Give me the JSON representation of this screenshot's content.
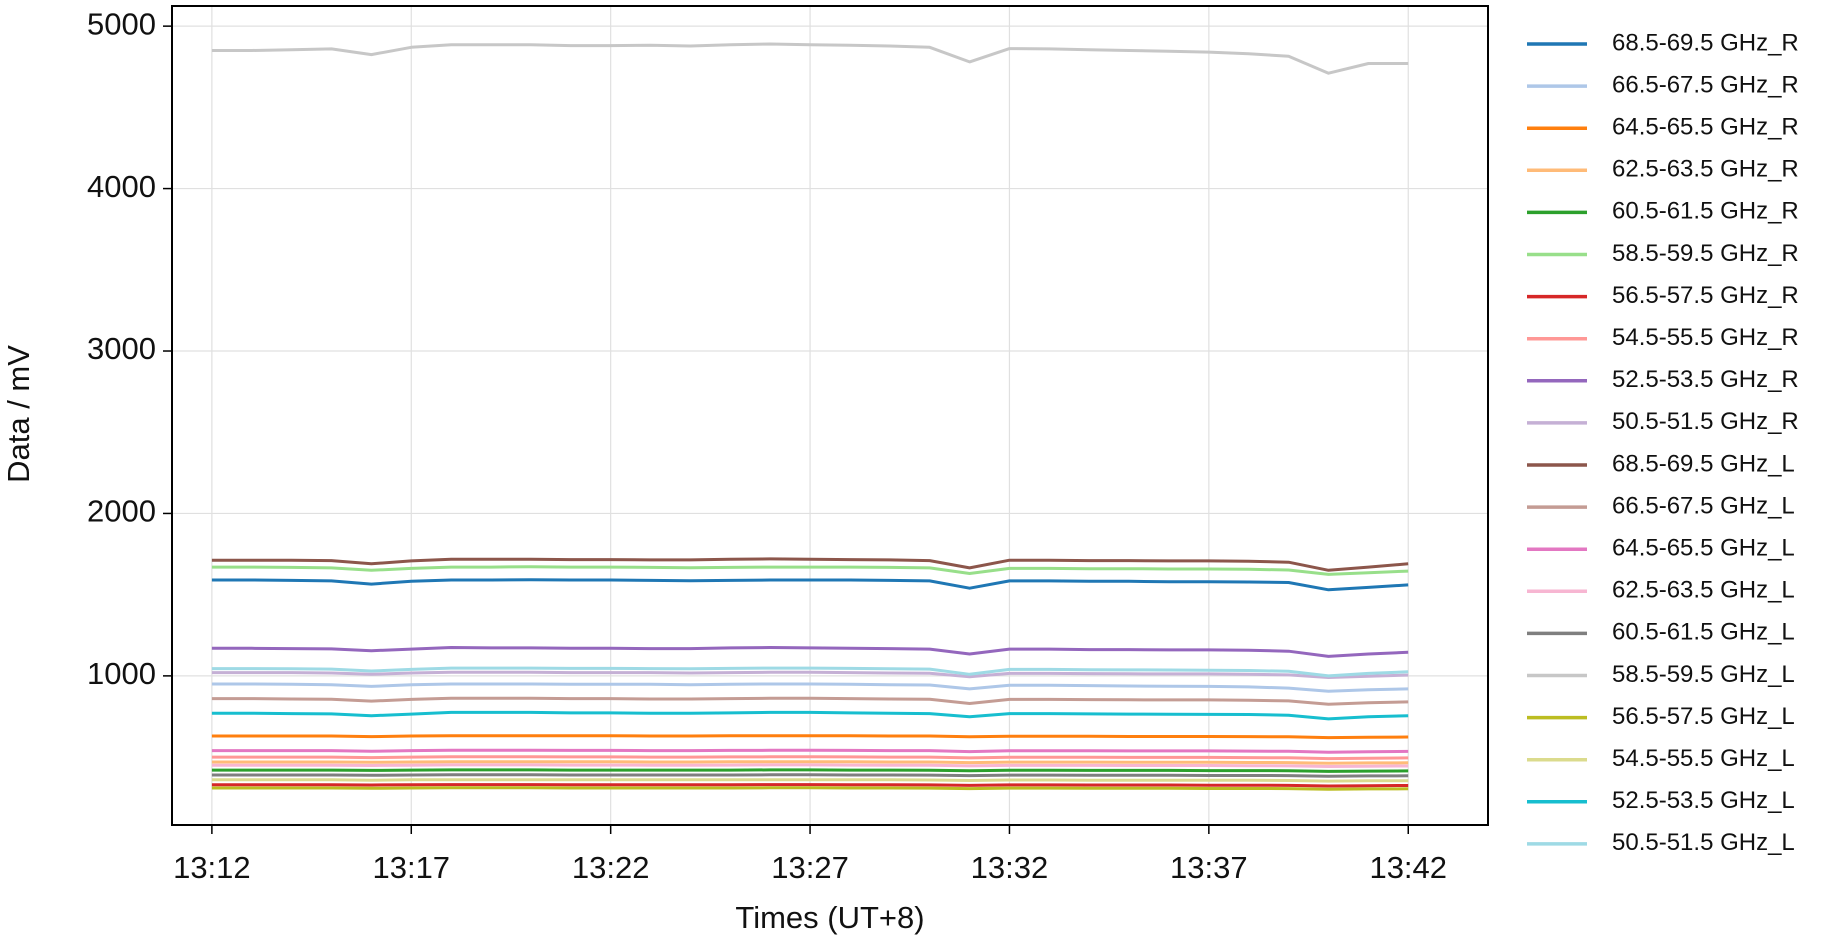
{
  "chart_data": {
    "type": "line",
    "xlabel": "Times (UT+8)",
    "ylabel": "Data / mV",
    "x": [
      "13:12",
      "13:13",
      "13:14",
      "13:15",
      "13:16",
      "13:17",
      "13:18",
      "13:19",
      "13:20",
      "13:21",
      "13:22",
      "13:23",
      "13:24",
      "13:25",
      "13:26",
      "13:27",
      "13:28",
      "13:29",
      "13:30",
      "13:31",
      "13:32",
      "13:33",
      "13:34",
      "13:35",
      "13:36",
      "13:37",
      "13:38",
      "13:39",
      "13:40",
      "13:41",
      "13:42"
    ],
    "xlim": [
      "13:11",
      "13:44"
    ],
    "xticks": [
      "13:12",
      "13:17",
      "13:22",
      "13:27",
      "13:32",
      "13:37",
      "13:42"
    ],
    "ylim": [
      82,
      5124
    ],
    "yticks": [
      1000,
      2000,
      3000,
      4000,
      5000
    ],
    "grid": true,
    "legend": "outside-right",
    "series": [
      {
        "name": "68.5-69.5 GHz_R",
        "color": "#1f77b4",
        "values": [
          1590,
          1590,
          1588,
          1585,
          1565,
          1582,
          1590,
          1590,
          1592,
          1590,
          1590,
          1588,
          1586,
          1588,
          1590,
          1590,
          1590,
          1588,
          1585,
          1540,
          1585,
          1585,
          1583,
          1582,
          1580,
          1580,
          1578,
          1575,
          1530,
          1545,
          1560
        ]
      },
      {
        "name": "66.5-67.5 GHz_R",
        "color": "#aec7e8",
        "values": [
          950,
          950,
          948,
          946,
          935,
          945,
          950,
          950,
          950,
          948,
          948,
          948,
          946,
          948,
          950,
          950,
          948,
          946,
          944,
          920,
          942,
          942,
          940,
          938,
          936,
          935,
          932,
          925,
          905,
          915,
          920
        ]
      },
      {
        "name": "64.5-65.5 GHz_R",
        "color": "#ff7f0e",
        "values": [
          630,
          630,
          630,
          630,
          626,
          630,
          632,
          632,
          632,
          632,
          631,
          630,
          630,
          631,
          632,
          632,
          631,
          630,
          630,
          625,
          628,
          628,
          628,
          627,
          627,
          627,
          626,
          625,
          620,
          622,
          624
        ]
      },
      {
        "name": "62.5-63.5 GHz_R",
        "color": "#ffbb78",
        "values": [
          470,
          470,
          470,
          470,
          468,
          470,
          472,
          472,
          472,
          471,
          471,
          470,
          470,
          471,
          472,
          472,
          471,
          470,
          470,
          466,
          469,
          469,
          469,
          468,
          468,
          468,
          467,
          466,
          462,
          464,
          465
        ]
      },
      {
        "name": "60.5-61.5 GHz_R",
        "color": "#2ca02c",
        "values": [
          420,
          420,
          420,
          420,
          418,
          420,
          421,
          421,
          421,
          420,
          420,
          420,
          420,
          420,
          421,
          421,
          420,
          420,
          419,
          416,
          419,
          419,
          418,
          418,
          418,
          417,
          417,
          416,
          412,
          414,
          415
        ]
      },
      {
        "name": "58.5-59.5 GHz_R",
        "color": "#98df8a",
        "values": [
          1670,
          1670,
          1668,
          1665,
          1650,
          1662,
          1670,
          1670,
          1672,
          1670,
          1670,
          1668,
          1666,
          1668,
          1670,
          1670,
          1670,
          1668,
          1665,
          1630,
          1662,
          1662,
          1660,
          1660,
          1658,
          1658,
          1656,
          1652,
          1625,
          1635,
          1645
        ]
      },
      {
        "name": "56.5-57.5 GHz_R",
        "color": "#d62728",
        "values": [
          330,
          330,
          330,
          330,
          328,
          330,
          331,
          331,
          331,
          330,
          330,
          330,
          330,
          330,
          331,
          331,
          330,
          330,
          329,
          326,
          329,
          329,
          328,
          328,
          328,
          327,
          327,
          326,
          322,
          324,
          325
        ]
      },
      {
        "name": "54.5-55.5 GHz_R",
        "color": "#ff9896",
        "values": [
          500,
          500,
          500,
          500,
          497,
          500,
          502,
          502,
          502,
          501,
          501,
          500,
          500,
          501,
          502,
          502,
          501,
          500,
          500,
          495,
          499,
          499,
          499,
          498,
          498,
          498,
          497,
          496,
          491,
          493,
          495
        ]
      },
      {
        "name": "52.5-53.5 GHz_R",
        "color": "#9467bd",
        "values": [
          1170,
          1170,
          1168,
          1166,
          1155,
          1165,
          1175,
          1172,
          1172,
          1170,
          1170,
          1168,
          1168,
          1172,
          1175,
          1172,
          1170,
          1168,
          1165,
          1135,
          1165,
          1165,
          1162,
          1162,
          1160,
          1160,
          1158,
          1152,
          1120,
          1135,
          1145
        ]
      },
      {
        "name": "50.5-51.5 GHz_R",
        "color": "#c5b0d5",
        "values": [
          1020,
          1020,
          1020,
          1018,
          1010,
          1018,
          1022,
          1022,
          1022,
          1020,
          1020,
          1020,
          1018,
          1020,
          1022,
          1022,
          1020,
          1018,
          1016,
          995,
          1015,
          1015,
          1014,
          1013,
          1012,
          1012,
          1010,
          1006,
          990,
          998,
          1005
        ]
      },
      {
        "name": "68.5-69.5 GHz_L",
        "color": "#8c564b",
        "values": [
          1712,
          1712,
          1712,
          1710,
          1690,
          1708,
          1718,
          1718,
          1718,
          1716,
          1716,
          1714,
          1714,
          1718,
          1720,
          1718,
          1716,
          1714,
          1710,
          1665,
          1712,
          1712,
          1710,
          1710,
          1708,
          1708,
          1706,
          1700,
          1650,
          1670,
          1690
        ]
      },
      {
        "name": "66.5-67.5 GHz_L",
        "color": "#c49c94",
        "values": [
          860,
          860,
          858,
          856,
          845,
          855,
          862,
          862,
          862,
          860,
          860,
          858,
          858,
          860,
          862,
          862,
          860,
          858,
          856,
          830,
          855,
          855,
          854,
          853,
          852,
          852,
          850,
          846,
          825,
          835,
          840
        ]
      },
      {
        "name": "64.5-65.5 GHz_L",
        "color": "#e377c2",
        "values": [
          540,
          540,
          540,
          540,
          536,
          540,
          542,
          542,
          542,
          541,
          541,
          540,
          540,
          541,
          542,
          542,
          541,
          540,
          540,
          534,
          539,
          539,
          539,
          538,
          538,
          538,
          537,
          536,
          530,
          533,
          535
        ]
      },
      {
        "name": "62.5-63.5 GHz_L",
        "color": "#f7b6d2",
        "values": [
          450,
          450,
          450,
          450,
          448,
          450,
          452,
          452,
          452,
          451,
          451,
          450,
          450,
          451,
          452,
          452,
          451,
          450,
          450,
          446,
          449,
          449,
          449,
          448,
          448,
          448,
          447,
          446,
          442,
          444,
          445
        ]
      },
      {
        "name": "60.5-61.5 GHz_L",
        "color": "#7f7f7f",
        "values": [
          390,
          390,
          390,
          390,
          388,
          390,
          391,
          391,
          391,
          390,
          390,
          390,
          390,
          390,
          391,
          391,
          390,
          390,
          389,
          386,
          389,
          389,
          388,
          388,
          388,
          387,
          387,
          386,
          382,
          384,
          385
        ]
      },
      {
        "name": "58.5-59.5 GHz_L",
        "color": "#c7c7c7",
        "values": [
          4850,
          4850,
          4855,
          4860,
          4825,
          4870,
          4885,
          4885,
          4885,
          4880,
          4880,
          4882,
          4878,
          4885,
          4890,
          4885,
          4882,
          4878,
          4870,
          4780,
          4862,
          4860,
          4855,
          4850,
          4845,
          4840,
          4830,
          4815,
          4710,
          4770,
          4770
        ]
      },
      {
        "name": "56.5-57.5 GHz_L",
        "color": "#bcbd22",
        "values": [
          310,
          310,
          310,
          310,
          308,
          310,
          311,
          311,
          311,
          310,
          310,
          310,
          310,
          310,
          311,
          311,
          310,
          310,
          309,
          306,
          309,
          309,
          308,
          308,
          308,
          307,
          307,
          306,
          302,
          304,
          305
        ]
      },
      {
        "name": "54.5-55.5 GHz_L",
        "color": "#dbdb8d",
        "values": [
          360,
          360,
          360,
          360,
          358,
          360,
          361,
          361,
          361,
          360,
          360,
          360,
          360,
          360,
          361,
          361,
          360,
          360,
          359,
          356,
          359,
          359,
          358,
          358,
          358,
          357,
          357,
          356,
          352,
          354,
          355
        ]
      },
      {
        "name": "52.5-53.5 GHz_L",
        "color": "#17becf",
        "values": [
          770,
          770,
          768,
          766,
          755,
          765,
          775,
          775,
          775,
          772,
          772,
          770,
          770,
          772,
          775,
          775,
          772,
          770,
          768,
          748,
          768,
          768,
          766,
          765,
          764,
          763,
          762,
          758,
          735,
          748,
          755
        ]
      },
      {
        "name": "50.5-51.5 GHz_L",
        "color": "#9edae5",
        "values": [
          1045,
          1045,
          1044,
          1042,
          1030,
          1040,
          1048,
          1048,
          1048,
          1046,
          1046,
          1045,
          1044,
          1046,
          1048,
          1048,
          1046,
          1044,
          1042,
          1010,
          1040,
          1040,
          1038,
          1037,
          1036,
          1035,
          1033,
          1028,
          1000,
          1015,
          1025
        ]
      }
    ]
  }
}
